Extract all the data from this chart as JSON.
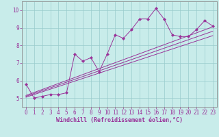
{
  "xlabel": "Windchill (Refroidissement éolien,°C)",
  "bg_color": "#c8ecea",
  "line_color": "#993399",
  "grid_color": "#99cccc",
  "spine_color": "#888888",
  "xlim": [
    -0.5,
    23.5
  ],
  "ylim": [
    4.5,
    10.5
  ],
  "yticks": [
    5,
    6,
    7,
    8,
    9,
    10
  ],
  "xticks": [
    0,
    1,
    2,
    3,
    4,
    5,
    6,
    7,
    8,
    9,
    10,
    11,
    12,
    13,
    14,
    15,
    16,
    17,
    18,
    19,
    20,
    21,
    22,
    23
  ],
  "main_x": [
    0,
    1,
    2,
    3,
    4,
    5,
    6,
    7,
    8,
    9,
    10,
    11,
    12,
    13,
    14,
    15,
    16,
    17,
    18,
    19,
    20,
    21,
    22,
    23
  ],
  "main_y": [
    5.8,
    5.0,
    5.1,
    5.2,
    5.2,
    5.3,
    7.5,
    7.1,
    7.3,
    6.5,
    7.5,
    8.6,
    8.4,
    8.9,
    9.5,
    9.5,
    10.1,
    9.5,
    8.6,
    8.5,
    8.5,
    8.9,
    9.4,
    9.1
  ],
  "line1_x": [
    0,
    23
  ],
  "line1_y": [
    5.05,
    8.55
  ],
  "line2_x": [
    0,
    23
  ],
  "line2_y": [
    5.1,
    8.8
  ],
  "line3_x": [
    0,
    23
  ],
  "line3_y": [
    5.15,
    9.05
  ],
  "xlabel_fontsize": 6,
  "tick_fontsize": 5.5
}
